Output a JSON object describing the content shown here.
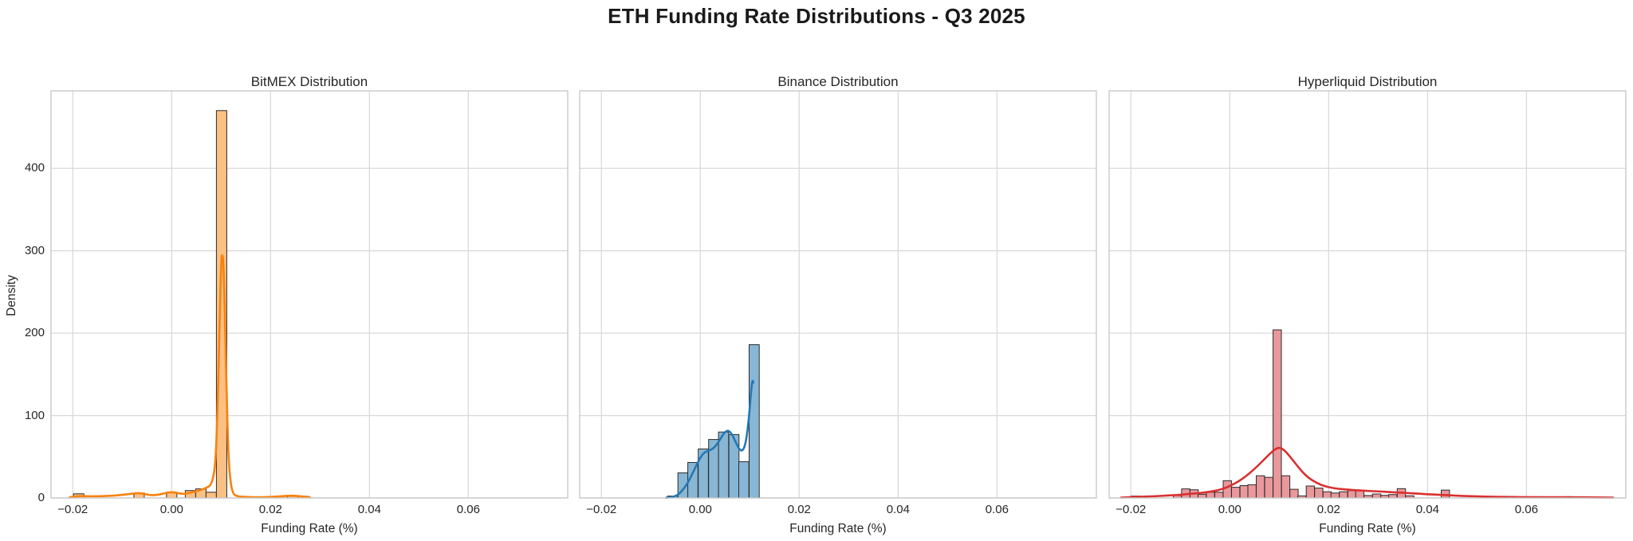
{
  "figure": {
    "suptitle": "ETH Funding Rate Distributions - Q3 2025",
    "background": "#ffffff"
  },
  "axes": {
    "xlabel": "Funding Rate (%)",
    "ylabel": "Density",
    "xlim": [
      -0.0244,
      0.0801
    ],
    "ylim": [
      0,
      494
    ],
    "grid": true,
    "grid_color": "#dadada",
    "spine_color": "#c9c9c9",
    "tick_color": "#262626",
    "x_ticks": {
      "values": [
        -0.02,
        0.0,
        0.02,
        0.04,
        0.06
      ],
      "labels": [
        "−0.02",
        "0.00",
        "0.02",
        "0.04",
        "0.06"
      ]
    },
    "y_ticks": {
      "values": [
        0,
        100,
        200,
        300,
        400
      ],
      "labels": [
        "0",
        "100",
        "200",
        "300",
        "400"
      ]
    }
  },
  "chart_data": [
    {
      "type": "bar",
      "subtype": "histogram_with_kde",
      "title": "BitMEX Distribution",
      "exchange": "BitMEX",
      "xlabel": "Funding Rate (%)",
      "bin_width": 0.0021,
      "colors": {
        "bar_fill": "#fbc084",
        "bar_edge": "#2b2b2b",
        "kde_line": "#f8820e"
      },
      "bars": [
        [
          -0.0188,
          5
        ],
        [
          -0.0066,
          6
        ],
        [
          0.0,
          7
        ],
        [
          0.0038,
          9
        ],
        [
          0.0059,
          11
        ],
        [
          0.008,
          7
        ],
        [
          0.0101,
          470
        ],
        [
          0.0224,
          2
        ],
        [
          0.0245,
          2
        ],
        [
          0.0266,
          2
        ]
      ],
      "kde": [
        [
          -0.0206,
          1
        ],
        [
          -0.019,
          2.5
        ],
        [
          -0.017,
          2
        ],
        [
          -0.015,
          2
        ],
        [
          -0.013,
          2.5
        ],
        [
          -0.011,
          3
        ],
        [
          -0.009,
          4.5
        ],
        [
          -0.0075,
          5.5
        ],
        [
          -0.0065,
          6
        ],
        [
          -0.0055,
          5
        ],
        [
          -0.0045,
          3.5
        ],
        [
          -0.003,
          3.5
        ],
        [
          -0.0015,
          5.5
        ],
        [
          -0.0005,
          7
        ],
        [
          0.0005,
          7
        ],
        [
          0.0015,
          5.5
        ],
        [
          0.0025,
          5
        ],
        [
          0.0035,
          6
        ],
        [
          0.0045,
          7.5
        ],
        [
          0.0055,
          9
        ],
        [
          0.0065,
          11
        ],
        [
          0.0072,
          13
        ],
        [
          0.0078,
          15
        ],
        [
          0.0083,
          22
        ],
        [
          0.0087,
          35
        ],
        [
          0.009,
          60
        ],
        [
          0.0093,
          110
        ],
        [
          0.0096,
          190
        ],
        [
          0.0099,
          262
        ],
        [
          0.0101,
          293
        ],
        [
          0.0102,
          295
        ],
        [
          0.0104,
          291
        ],
        [
          0.0106,
          262
        ],
        [
          0.0108,
          210
        ],
        [
          0.0111,
          130
        ],
        [
          0.0114,
          65
        ],
        [
          0.0117,
          30
        ],
        [
          0.0121,
          12
        ],
        [
          0.0125,
          5
        ],
        [
          0.013,
          2.5
        ],
        [
          0.014,
          1.5
        ],
        [
          0.016,
          1
        ],
        [
          0.018,
          1
        ],
        [
          0.02,
          1.2
        ],
        [
          0.022,
          2
        ],
        [
          0.024,
          3
        ],
        [
          0.026,
          2.2
        ],
        [
          0.0275,
          1
        ],
        [
          0.028,
          0.8
        ]
      ]
    },
    {
      "type": "bar",
      "subtype": "histogram_with_kde",
      "title": "Binance Distribution",
      "exchange": "Binance",
      "xlabel": "Funding Rate (%)",
      "bin_width": 0.00205,
      "colors": {
        "bar_fill": "#88b6d5",
        "bar_edge": "#2b2b2b",
        "kde_line": "#2478b4"
      },
      "bars": [
        [
          -0.0056,
          2.3
        ],
        [
          -0.0035,
          30.5
        ],
        [
          -0.0015,
          43
        ],
        [
          0.0006,
          59.5
        ],
        [
          0.0027,
          71
        ],
        [
          0.0047,
          80
        ],
        [
          0.0068,
          77
        ],
        [
          0.0088,
          44
        ],
        [
          0.0109,
          186
        ]
      ],
      "kde": [
        [
          -0.0069,
          0.3
        ],
        [
          -0.006,
          0.8
        ],
        [
          -0.0052,
          2
        ],
        [
          -0.0045,
          4
        ],
        [
          -0.0038,
          8
        ],
        [
          -0.003,
          14
        ],
        [
          -0.0022,
          22
        ],
        [
          -0.0014,
          32
        ],
        [
          -0.0006,
          42
        ],
        [
          0.0,
          49
        ],
        [
          0.0006,
          54
        ],
        [
          0.0012,
          56.5
        ],
        [
          0.002,
          58
        ],
        [
          0.0028,
          61
        ],
        [
          0.0036,
          67
        ],
        [
          0.0044,
          75
        ],
        [
          0.005,
          80
        ],
        [
          0.0055,
          82
        ],
        [
          0.006,
          80.5
        ],
        [
          0.0066,
          75
        ],
        [
          0.0072,
          67
        ],
        [
          0.0078,
          60
        ],
        [
          0.0082,
          57.5
        ],
        [
          0.0086,
          58
        ],
        [
          0.009,
          63
        ],
        [
          0.0094,
          75
        ],
        [
          0.0098,
          95
        ],
        [
          0.0101,
          118
        ],
        [
          0.0104,
          138
        ],
        [
          0.0106,
          143
        ],
        [
          0.0107,
          140
        ]
      ]
    },
    {
      "type": "bar",
      "subtype": "histogram_with_kde",
      "title": "Hyperliquid Distribution",
      "exchange": "Hyperliquid",
      "xlabel": "Funding Rate (%)",
      "bin_width": 0.00168,
      "colors": {
        "bar_fill": "#e9989c",
        "bar_edge": "#2b2b2b",
        "kde_line": "#da3030"
      },
      "bars": [
        [
          -0.0191,
          2.3
        ],
        [
          -0.0106,
          3
        ],
        [
          -0.0089,
          11
        ],
        [
          -0.0072,
          10
        ],
        [
          -0.0056,
          4.5
        ],
        [
          -0.0039,
          7
        ],
        [
          -0.0022,
          7
        ],
        [
          -0.0005,
          21
        ],
        [
          0.0012,
          13
        ],
        [
          0.0029,
          15
        ],
        [
          0.0045,
          16
        ],
        [
          0.0062,
          27
        ],
        [
          0.0079,
          25
        ],
        [
          0.0096,
          204
        ],
        [
          0.0113,
          27
        ],
        [
          0.013,
          10.5
        ],
        [
          0.0146,
          2.5
        ],
        [
          0.0163,
          14.5
        ],
        [
          0.018,
          12
        ],
        [
          0.0197,
          7.5
        ],
        [
          0.0213,
          6
        ],
        [
          0.023,
          7.5
        ],
        [
          0.0247,
          9
        ],
        [
          0.0263,
          9
        ],
        [
          0.028,
          3
        ],
        [
          0.0297,
          4.8
        ],
        [
          0.0314,
          3.2
        ],
        [
          0.033,
          4.2
        ],
        [
          0.0347,
          11.3
        ],
        [
          0.0364,
          2.6
        ],
        [
          0.0436,
          9.6
        ],
        [
          0.0685,
          1.5
        ]
      ],
      "kde": [
        [
          -0.022,
          0.5
        ],
        [
          -0.02,
          1
        ],
        [
          -0.018,
          1.5
        ],
        [
          -0.0155,
          2
        ],
        [
          -0.013,
          2.8
        ],
        [
          -0.011,
          3.5
        ],
        [
          -0.0095,
          4.2
        ],
        [
          -0.008,
          5
        ],
        [
          -0.0065,
          5.8
        ],
        [
          -0.005,
          6.8
        ],
        [
          -0.0035,
          8
        ],
        [
          -0.002,
          10
        ],
        [
          -0.0005,
          13
        ],
        [
          0.001,
          17.5
        ],
        [
          0.0025,
          23
        ],
        [
          0.004,
          30
        ],
        [
          0.0055,
          38
        ],
        [
          0.007,
          47
        ],
        [
          0.008,
          53
        ],
        [
          0.009,
          58.5
        ],
        [
          0.0098,
          61
        ],
        [
          0.0104,
          60.5
        ],
        [
          0.0112,
          57
        ],
        [
          0.0122,
          50
        ],
        [
          0.0134,
          41
        ],
        [
          0.0146,
          32
        ],
        [
          0.0158,
          25
        ],
        [
          0.0172,
          19.5
        ],
        [
          0.0186,
          15.5
        ],
        [
          0.02,
          13
        ],
        [
          0.022,
          11
        ],
        [
          0.024,
          10
        ],
        [
          0.026,
          9.2
        ],
        [
          0.028,
          8.5
        ],
        [
          0.03,
          8
        ],
        [
          0.032,
          7.3
        ],
        [
          0.034,
          6.7
        ],
        [
          0.036,
          6
        ],
        [
          0.038,
          5.3
        ],
        [
          0.04,
          4.6
        ],
        [
          0.042,
          4
        ],
        [
          0.044,
          3.4
        ],
        [
          0.046,
          2.8
        ],
        [
          0.048,
          2.3
        ],
        [
          0.05,
          1.9
        ],
        [
          0.054,
          1.4
        ],
        [
          0.058,
          1.1
        ],
        [
          0.062,
          1
        ],
        [
          0.066,
          1
        ],
        [
          0.07,
          0.9
        ],
        [
          0.074,
          0.7
        ],
        [
          0.0775,
          0.5
        ]
      ]
    }
  ]
}
